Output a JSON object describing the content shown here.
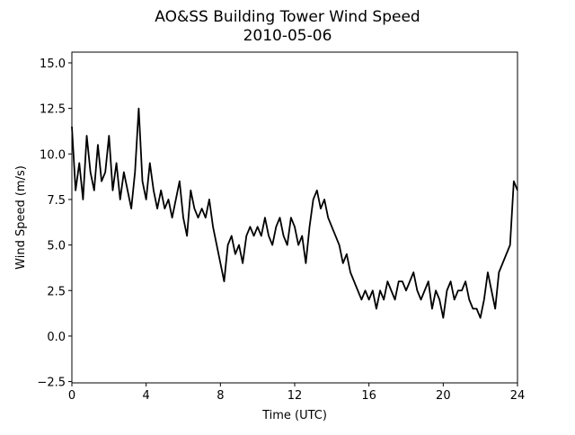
{
  "chart_data": {
    "type": "line",
    "title": "AO&SS Building Tower Wind Speed",
    "subtitle": "2010-05-06",
    "x_label": "Time (UTC)",
    "y_label": "Wind Speed (m/s)",
    "x": [
      0,
      0.2,
      0.4,
      0.6,
      0.8,
      1,
      1.2,
      1.4,
      1.6,
      1.8,
      2,
      2.2,
      2.4,
      2.6,
      2.8,
      3,
      3.2,
      3.4,
      3.6,
      3.8,
      4,
      4.2,
      4.4,
      4.6,
      4.8,
      5,
      5.2,
      5.4,
      5.6,
      5.8,
      6,
      6.2,
      6.4,
      6.6,
      6.8,
      7,
      7.2,
      7.4,
      7.6,
      7.8,
      8,
      8.2,
      8.4,
      8.6,
      8.8,
      9,
      9.2,
      9.4,
      9.6,
      9.8,
      10,
      10.2,
      10.4,
      10.6,
      10.8,
      11,
      11.2,
      11.4,
      11.6,
      11.8,
      12,
      12.2,
      12.4,
      12.6,
      12.8,
      13,
      13.2,
      13.4,
      13.6,
      13.8,
      14,
      14.2,
      14.4,
      14.6,
      14.8,
      15,
      15.2,
      15.4,
      15.6,
      15.8,
      16,
      16.2,
      16.4,
      16.6,
      16.8,
      17,
      17.2,
      17.4,
      17.6,
      17.8,
      18,
      18.2,
      18.4,
      18.6,
      18.8,
      19,
      19.2,
      19.4,
      19.6,
      19.8,
      20,
      20.2,
      20.4,
      20.6,
      20.8,
      21,
      21.2,
      21.4,
      21.6,
      21.8,
      22,
      22.2,
      22.4,
      22.6,
      22.8,
      23,
      23.2,
      23.4,
      23.6,
      23.8,
      24
    ],
    "series": [
      {
        "color": "#000000",
        "values": [
          11.5,
          8,
          9.5,
          7.5,
          11,
          9,
          8,
          10.5,
          8.5,
          9,
          11,
          8,
          9.5,
          7.5,
          9,
          8,
          7,
          9,
          12.5,
          8.5,
          7.5,
          9.5,
          8,
          7,
          8,
          7,
          7.5,
          6.5,
          7.5,
          8.5,
          6.5,
          5.5,
          8,
          7,
          6.5,
          7,
          6.5,
          7.5,
          6,
          5,
          4,
          3,
          5,
          5.5,
          4.5,
          5,
          4,
          5.5,
          6,
          5.5,
          6,
          5.5,
          6.5,
          5.5,
          5,
          6,
          6.5,
          5.5,
          5,
          6.5,
          6,
          5,
          5.5,
          4,
          6,
          7.5,
          8,
          7,
          7.5,
          6.5,
          6,
          5.5,
          5,
          4,
          4.5,
          3.5,
          3,
          2.5,
          2,
          2.5,
          2,
          2.5,
          1.5,
          2.5,
          2,
          3,
          2.5,
          2,
          3,
          3,
          2.5,
          3,
          3.5,
          2.5,
          2,
          2.5,
          3,
          1.5,
          2.5,
          2,
          1,
          2.5,
          3,
          2,
          2.5,
          2.5,
          3,
          2,
          1.5,
          1.5,
          1,
          2,
          3.5,
          2.5,
          1.5,
          3.5,
          4,
          4.5,
          5,
          8.5,
          8
        ]
      }
    ],
    "xlim": [
      0,
      24
    ],
    "ylim": [
      -2.57,
      15.59
    ],
    "xticks": [
      0,
      4,
      8,
      12,
      16,
      20,
      24
    ],
    "yticks": [
      {
        "value": -2.5,
        "label": "−2.5"
      },
      {
        "value": 0,
        "label": "0.0"
      },
      {
        "value": 2.5,
        "label": "2.5"
      },
      {
        "value": 5,
        "label": "5.0"
      },
      {
        "value": 7.5,
        "label": "7.5"
      },
      {
        "value": 10,
        "label": "10.0"
      },
      {
        "value": 12.5,
        "label": "12.5"
      },
      {
        "value": 15,
        "label": "15.0"
      }
    ]
  }
}
